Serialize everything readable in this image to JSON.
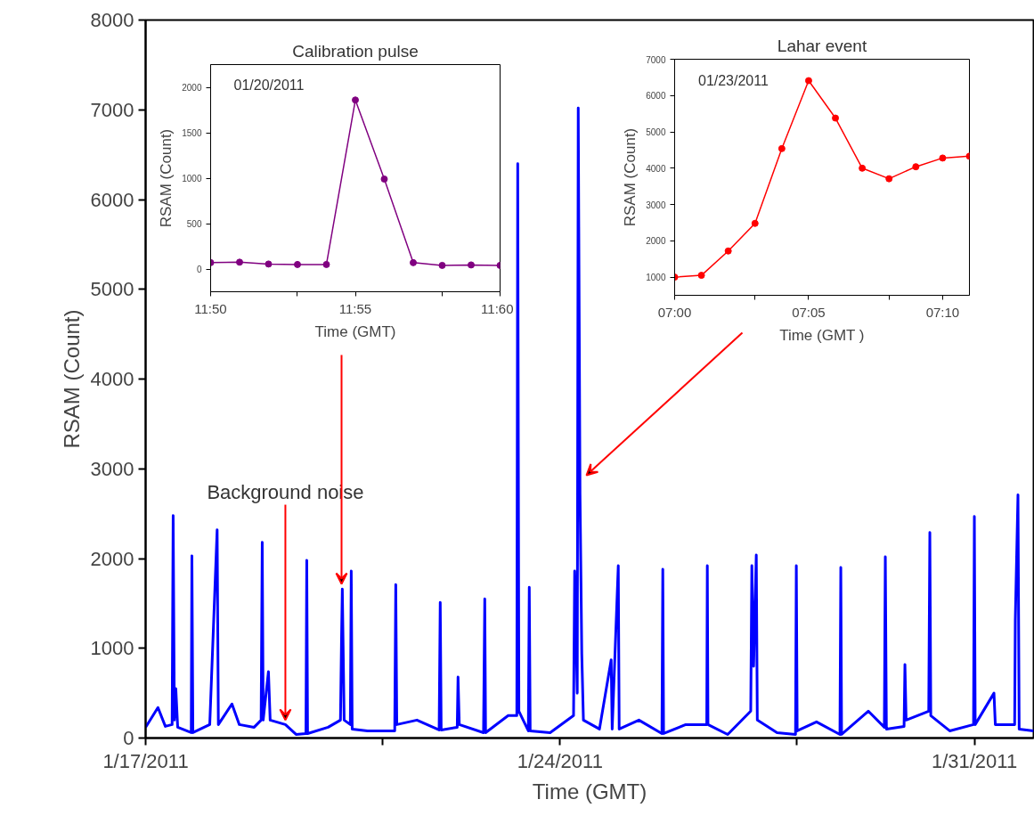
{
  "chart_data": [
    {
      "type": "line",
      "xlabel": "Time (GMT)",
      "ylabel": "RSAM (Count)",
      "x": [
        "2011-01-17T00:00",
        "2011-01-17T05:00",
        "2011-01-17T08:00",
        "2011-01-17T10:45",
        "2011-01-17T11:10",
        "2011-01-17T11:40",
        "2011-01-17T12:15",
        "2011-01-17T13:00",
        "2011-01-17T18:30",
        "2011-01-17T18:46",
        "2011-01-17T19:10",
        "2011-01-18T02:00",
        "2011-01-18T05:00",
        "2011-01-18T05:30",
        "2011-01-18T11:00",
        "2011-01-18T14:00",
        "2011-01-18T20:00",
        "2011-01-18T22:50",
        "2011-01-18T23:17",
        "2011-01-18T23:40",
        "2011-01-19T01:48",
        "2011-01-19T02:30",
        "2011-01-19T08:40",
        "2011-01-19T13:00",
        "2011-01-19T17:00",
        "2011-01-19T17:20",
        "2011-01-19T17:40",
        "2011-01-20T02:00",
        "2011-01-20T07:00",
        "2011-01-20T07:24",
        "2011-01-20T07:45",
        "2011-01-20T08:30",
        "2011-01-20T11:00",
        "2011-01-20T11:22",
        "2011-01-20T11:45",
        "2011-01-20T18:00",
        "2011-01-21T05:00",
        "2011-01-21T05:25",
        "2011-01-21T05:50",
        "2011-01-21T14:00",
        "2011-01-21T23:00",
        "2011-01-21T23:27",
        "2011-01-21T23:50",
        "2011-01-22T06:20",
        "2011-01-22T06:40",
        "2011-01-22T07:10",
        "2011-01-22T17:00",
        "2011-01-22T17:30",
        "2011-01-22T17:50",
        "2011-01-23T03:00",
        "2011-01-23T06:30",
        "2011-01-23T06:52",
        "2011-01-23T07:20",
        "2011-01-23T11:10",
        "2011-01-23T11:33",
        "2011-01-23T11:55",
        "2011-01-23T20:00",
        "2011-01-24T05:30",
        "2011-01-24T05:57",
        "2011-01-24T07:00",
        "2011-01-24T07:24",
        "2011-01-24T08:07",
        "2011-01-24T08:50",
        "2011-01-24T09:30",
        "2011-01-24T16:00",
        "2011-01-24T20:45",
        "2011-01-24T21:10",
        "2011-01-24T23:38",
        "2011-01-25T00:00",
        "2011-01-25T08:00",
        "2011-01-25T17:20",
        "2011-01-25T17:41",
        "2011-01-25T18:00",
        "2011-01-26T03:00",
        "2011-01-26T11:30",
        "2011-01-26T11:44",
        "2011-01-26T12:00",
        "2011-01-26T20:00",
        "2011-01-27T05:20",
        "2011-01-27T05:47",
        "2011-01-27T06:30",
        "2011-01-27T07:35",
        "2011-01-27T08:00",
        "2011-01-27T16:00",
        "2011-01-27T23:30",
        "2011-01-27T23:49",
        "2011-01-28T00:10",
        "2011-01-28T08:00",
        "2011-01-28T17:30",
        "2011-01-28T17:51",
        "2011-01-28T18:10",
        "2011-01-29T05:00",
        "2011-01-29T11:30",
        "2011-01-29T11:54",
        "2011-01-29T12:20",
        "2011-01-29T19:30",
        "2011-01-29T19:51",
        "2011-01-29T20:20",
        "2011-01-30T05:30",
        "2011-01-30T05:57",
        "2011-01-30T06:20",
        "2011-01-30T14:00",
        "2011-01-30T23:40",
        "2011-01-31T00:00",
        "2011-01-31T00:20",
        "2011-01-31T07:57",
        "2011-01-31T08:30",
        "2011-01-31T16:20",
        "2011-01-31T16:36",
        "2011-01-31T17:41",
        "2011-01-31T18:10",
        "2011-02-01T00:00"
      ],
      "series": [
        {
          "color": "#0000ff",
          "values": [
            120,
            340,
            130,
            150,
            2480,
            200,
            550,
            120,
            60,
            2030,
            60,
            150,
            2320,
            150,
            380,
            150,
            120,
            200,
            2180,
            200,
            740,
            200,
            150,
            40,
            50,
            1980,
            50,
            120,
            200,
            1040,
            1660,
            200,
            150,
            1860,
            100,
            80,
            80,
            1710,
            150,
            200,
            90,
            1510,
            90,
            120,
            680,
            150,
            60,
            1550,
            60,
            250,
            250,
            6400,
            300,
            80,
            1680,
            80,
            60,
            250,
            1860,
            500,
            7020,
            2720,
            940,
            200,
            100,
            870,
            100,
            1920,
            100,
            200,
            50,
            1880,
            50,
            150,
            150,
            1920,
            150,
            40,
            300,
            1920,
            800,
            2040,
            200,
            60,
            40,
            1920,
            80,
            180,
            40,
            1900,
            40,
            300,
            120,
            2020,
            100,
            130,
            820,
            200,
            300,
            2290,
            250,
            80,
            150,
            2470,
            150,
            500,
            150,
            150,
            1320,
            2710,
            100,
            80
          ]
        }
      ],
      "xlim": [
        "2011-01-17",
        "2011-02-01"
      ],
      "xticks": [
        {
          "value": "2011-01-17",
          "label": "1/17/2011"
        },
        {
          "value": "2011-01-21",
          "label": null
        },
        {
          "value": "2011-01-24",
          "label": "1/24/2011"
        },
        {
          "value": "2011-01-28",
          "label": null
        },
        {
          "value": "2011-01-31",
          "label": "1/31/2011"
        }
      ],
      "ylim": [
        0,
        8000
      ],
      "yticks": [
        0,
        1000,
        2000,
        3000,
        4000,
        5000,
        6000,
        7000,
        8000
      ],
      "annotations": [
        {
          "text": "Background noise",
          "x": "2011-01-19T08:40",
          "y": 200
        }
      ]
    },
    {
      "type": "line",
      "title": "Calibration pulse",
      "xlabel": "Time (GMT)",
      "ylabel": "RSAM (Count)",
      "marker": "circle",
      "x": [
        11.833333,
        11.85,
        11.866667,
        11.883333,
        11.9,
        11.916667,
        11.933333,
        11.95,
        11.966667,
        11.983333,
        12.0
      ],
      "series": [
        {
          "color": "#800080",
          "values": [
            70,
            75,
            55,
            50,
            50,
            1860,
            990,
            70,
            40,
            45,
            40
          ]
        }
      ],
      "xlim": [
        11.833333,
        12.0
      ],
      "xticks": [
        {
          "value": 11.833333,
          "label": "11:50"
        },
        {
          "value": 11.883333,
          "label": null
        },
        {
          "value": 11.916667,
          "label": "11:55"
        },
        {
          "value": 11.966667,
          "label": null
        },
        {
          "value": 12.0,
          "label": "11:60"
        }
      ],
      "ylim": [
        -250,
        2250
      ],
      "yticks": [
        0,
        500,
        1000,
        1500,
        2000
      ],
      "annotations": [
        "01/20/2011"
      ]
    },
    {
      "type": "line",
      "title": "Lahar event",
      "xlabel": "Time (GMT )",
      "ylabel": "RSAM (Count)",
      "marker": "circle",
      "x": [
        7.0,
        7.016667,
        7.033333,
        7.05,
        7.066667,
        7.083333,
        7.1,
        7.116667,
        7.133333,
        7.15,
        7.166667,
        7.183333
      ],
      "series": [
        {
          "color": "#ff0000",
          "values": [
            1000,
            1050,
            1720,
            2480,
            4540,
            6410,
            5380,
            4000,
            3710,
            4040,
            4280,
            4330
          ]
        }
      ],
      "xlim": [
        7.0,
        7.183333
      ],
      "xticks": [
        {
          "value": 7.0,
          "label": "07:00"
        },
        {
          "value": 7.05,
          "label": null
        },
        {
          "value": 7.083333,
          "label": "07:05"
        },
        {
          "value": 7.133333,
          "label": null
        },
        {
          "value": 7.166667,
          "label": "07:10"
        }
      ],
      "ylim": [
        500,
        7000
      ],
      "yticks": [
        1000,
        2000,
        3000,
        4000,
        5000,
        6000,
        7000
      ],
      "annotations": [
        "01/23/2011"
      ]
    }
  ]
}
